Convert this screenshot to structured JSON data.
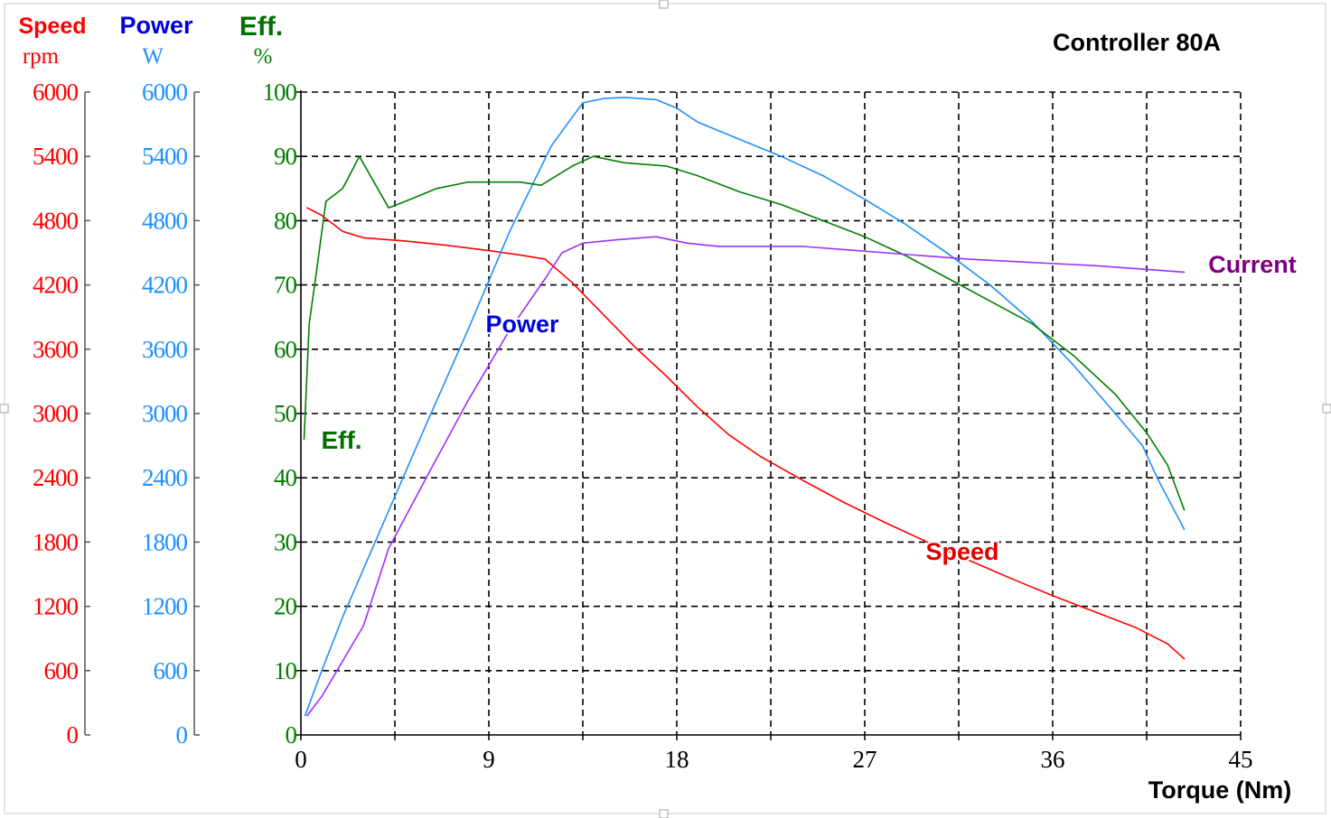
{
  "chart_data": {
    "type": "line",
    "title": "Controller 80A",
    "xlabel": "Torque (Nm)",
    "xlim": [
      0,
      45
    ],
    "x_ticks": [
      "0",
      "9",
      "18",
      "27",
      "36",
      "45"
    ],
    "grid": true,
    "axes": {
      "speed": {
        "label": "Speed",
        "unit": "rpm",
        "range": [
          0,
          6000
        ],
        "ticks": [
          "0",
          "600",
          "1200",
          "1800",
          "2400",
          "3000",
          "3600",
          "4200",
          "4800",
          "5400",
          "6000"
        ],
        "color": "#ff0000"
      },
      "power": {
        "label": "Power",
        "unit": "W",
        "range": [
          0,
          6000
        ],
        "ticks": [
          "0",
          "600",
          "1200",
          "1800",
          "2400",
          "3000",
          "3600",
          "4200",
          "4800",
          "5400",
          "6000"
        ],
        "color": "#1e90ff"
      },
      "eff": {
        "label": "Eff.",
        "unit": "%",
        "range": [
          0,
          100
        ],
        "ticks": [
          "0",
          "10",
          "20",
          "30",
          "40",
          "50",
          "60",
          "70",
          "80",
          "90",
          "100"
        ],
        "color": "#008000"
      }
    },
    "series": [
      {
        "name": "Speed",
        "axis": "speed",
        "color": "#ff0000",
        "label_color": "#e00000",
        "points": [
          [
            0.3,
            4920
          ],
          [
            1,
            4850
          ],
          [
            2,
            4700
          ],
          [
            3,
            4640
          ],
          [
            5,
            4610
          ],
          [
            7,
            4570
          ],
          [
            9,
            4520
          ],
          [
            10.5,
            4480
          ],
          [
            11.7,
            4440
          ],
          [
            13,
            4220
          ],
          [
            14.5,
            3920
          ],
          [
            16,
            3620
          ],
          [
            17.5,
            3350
          ],
          [
            19,
            3060
          ],
          [
            20.5,
            2800
          ],
          [
            22,
            2600
          ],
          [
            24,
            2380
          ],
          [
            26,
            2170
          ],
          [
            28,
            1980
          ],
          [
            30,
            1800
          ],
          [
            32,
            1630
          ],
          [
            34,
            1460
          ],
          [
            36,
            1300
          ],
          [
            38,
            1150
          ],
          [
            40,
            1000
          ],
          [
            41.5,
            850
          ],
          [
            42.3,
            710
          ]
        ]
      },
      {
        "name": "Power",
        "axis": "power",
        "color": "#1e90ff",
        "label_color": "#0000e0",
        "points": [
          [
            0.2,
            180
          ],
          [
            1,
            600
          ],
          [
            2,
            1100
          ],
          [
            4,
            2000
          ],
          [
            6,
            2900
          ],
          [
            8,
            3780
          ],
          [
            10,
            4700
          ],
          [
            12,
            5500
          ],
          [
            13.5,
            5900
          ],
          [
            14.5,
            5940
          ],
          [
            15.5,
            5950
          ],
          [
            17,
            5930
          ],
          [
            18,
            5850
          ],
          [
            19,
            5720
          ],
          [
            21,
            5560
          ],
          [
            23,
            5400
          ],
          [
            25,
            5220
          ],
          [
            27,
            5000
          ],
          [
            29,
            4760
          ],
          [
            31,
            4490
          ],
          [
            33,
            4200
          ],
          [
            35,
            3860
          ],
          [
            37,
            3450
          ],
          [
            39,
            3000
          ],
          [
            40.3,
            2700
          ],
          [
            41,
            2400
          ],
          [
            42.3,
            1920
          ]
        ]
      },
      {
        "name": "Eff.",
        "axis": "eff",
        "color": "#008000",
        "label_color": "#007000",
        "points": [
          [
            0.15,
            46
          ],
          [
            0.4,
            64
          ],
          [
            0.7,
            71
          ],
          [
            1.2,
            83
          ],
          [
            2,
            85
          ],
          [
            2.8,
            90
          ],
          [
            3.5,
            86
          ],
          [
            4.2,
            82
          ],
          [
            5,
            83
          ],
          [
            6.5,
            85
          ],
          [
            8,
            86
          ],
          [
            9,
            86
          ],
          [
            10.5,
            86
          ],
          [
            11.5,
            85.5
          ],
          [
            13,
            88.5
          ],
          [
            14,
            90
          ],
          [
            15.5,
            89
          ],
          [
            17.5,
            88.5
          ],
          [
            19,
            87
          ],
          [
            21,
            84.5
          ],
          [
            23,
            82.5
          ],
          [
            25,
            80
          ],
          [
            27,
            77.5
          ],
          [
            29,
            74.5
          ],
          [
            31,
            71
          ],
          [
            33,
            67.5
          ],
          [
            35,
            64
          ],
          [
            37,
            59
          ],
          [
            39,
            53
          ],
          [
            40.5,
            47
          ],
          [
            41.5,
            42
          ],
          [
            42.3,
            35
          ]
        ]
      },
      {
        "name": "Current",
        "axis": "eff",
        "color": "#9b30ff",
        "label_color": "#7d007d",
        "points": [
          [
            0.3,
            3
          ],
          [
            1,
            6
          ],
          [
            3,
            17
          ],
          [
            4.2,
            29
          ],
          [
            6,
            40
          ],
          [
            8,
            52
          ],
          [
            10,
            63
          ],
          [
            11.7,
            71
          ],
          [
            12.5,
            75
          ],
          [
            13.5,
            76.5
          ],
          [
            15,
            77
          ],
          [
            17,
            77.5
          ],
          [
            18.5,
            76.5
          ],
          [
            20,
            76
          ],
          [
            24,
            76
          ],
          [
            26,
            75.5
          ],
          [
            28,
            75
          ],
          [
            30,
            74.5
          ],
          [
            32,
            74
          ],
          [
            35,
            73.5
          ],
          [
            38,
            73
          ],
          [
            42.3,
            72
          ]
        ]
      }
    ]
  }
}
